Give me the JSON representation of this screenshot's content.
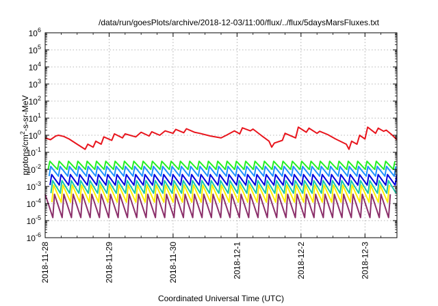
{
  "chart_data": {
    "type": "line",
    "title": "/data/run/goesPlots/archive/2018-12-03/11:00/flux/../flux/5daysMarsFluxes.txt",
    "xlabel": "Coordinated Universal Time (UTC)",
    "ylabel": {
      "prefix": "protons/cm",
      "superscript": "2",
      "suffix": "-s-sr-MeV"
    },
    "x_axis": {
      "type": "date",
      "range": [
        "2018-11-28",
        "2018-12-03 12:00"
      ],
      "tick_labels": [
        "2018-11-28",
        "2018-11-29",
        "2018-11-30",
        "2018-12-1",
        "2018-12-2",
        "2018-12-3"
      ],
      "grid": true
    },
    "y_axis": {
      "scale": "log",
      "range": [
        1e-06,
        1000000
      ],
      "tick_labels": [
        {
          "base": "10",
          "exp": "-6"
        },
        {
          "base": "10",
          "exp": "-5"
        },
        {
          "base": "10",
          "exp": "-4"
        },
        {
          "base": "10",
          "exp": "-3"
        },
        {
          "base": "10",
          "exp": "-2"
        },
        {
          "base": "10",
          "exp": "-1"
        },
        {
          "base": "10",
          "exp": "0"
        },
        {
          "base": "10",
          "exp": "1"
        },
        {
          "base": "10",
          "exp": "2"
        },
        {
          "base": "10",
          "exp": "3"
        },
        {
          "base": "10",
          "exp": "4"
        },
        {
          "base": "10",
          "exp": "5"
        },
        {
          "base": "10",
          "exp": "6"
        }
      ],
      "grid": true
    },
    "legend": "none",
    "series": [
      {
        "color": "#e8141c",
        "points": [
          [
            "2018-11-28 00:00",
            0.7
          ],
          [
            "2018-11-28 02:00",
            0.55
          ],
          [
            "2018-11-28 04:00",
            0.9
          ],
          [
            "2018-11-28 05:00",
            1.0
          ],
          [
            "2018-11-28 07:00",
            0.85
          ],
          [
            "2018-11-28 09:00",
            0.6
          ],
          [
            "2018-11-28 12:00",
            0.3
          ],
          [
            "2018-11-28 15:00",
            0.15
          ],
          [
            "2018-11-28 16:00",
            0.3
          ],
          [
            "2018-11-28 18:00",
            0.2
          ],
          [
            "2018-11-28 19:00",
            0.45
          ],
          [
            "2018-11-28 21:00",
            0.3
          ],
          [
            "2018-11-28 22:00",
            0.8
          ],
          [
            "2018-11-29 01:00",
            0.5
          ],
          [
            "2018-11-29 02:00",
            1.2
          ],
          [
            "2018-11-29 05:00",
            0.7
          ],
          [
            "2018-11-29 06:00",
            1.2
          ],
          [
            "2018-11-29 10:00",
            0.8
          ],
          [
            "2018-11-29 12:00",
            1.5
          ],
          [
            "2018-11-29 15:00",
            0.9
          ],
          [
            "2018-11-29 16:00",
            1.6
          ],
          [
            "2018-11-29 19:00",
            1.0
          ],
          [
            "2018-11-29 21:00",
            1.8
          ],
          [
            "2018-11-30 00:00",
            1.3
          ],
          [
            "2018-11-30 01:00",
            2.2
          ],
          [
            "2018-11-30 04:00",
            1.4
          ],
          [
            "2018-11-30 05:00",
            2.4
          ],
          [
            "2018-11-30 08:00",
            1.5
          ],
          [
            "2018-11-30 10:00",
            1.3
          ],
          [
            "2018-11-30 14:00",
            0.9
          ],
          [
            "2018-11-30 18:00",
            0.7
          ],
          [
            "2018-11-30 20:00",
            1.0
          ],
          [
            "2018-11-30 23:00",
            1.8
          ],
          [
            "2018-12-01 01:00",
            1.2
          ],
          [
            "2018-12-01 02:00",
            2.7
          ],
          [
            "2018-12-01 05:00",
            1.8
          ],
          [
            "2018-12-01 06:00",
            2.3
          ],
          [
            "2018-12-01 09:00",
            1.0
          ],
          [
            "2018-12-01 12:00",
            0.45
          ],
          [
            "2018-12-01 13:00",
            0.2
          ],
          [
            "2018-12-01 14:00",
            0.35
          ],
          [
            "2018-12-01 17:00",
            0.5
          ],
          [
            "2018-12-01 18:00",
            1.3
          ],
          [
            "2018-12-01 22:00",
            0.7
          ],
          [
            "2018-12-01 23:00",
            3.0
          ],
          [
            "2018-12-02 02:00",
            1.5
          ],
          [
            "2018-12-02 03:00",
            2.6
          ],
          [
            "2018-12-02 06:00",
            1.3
          ],
          [
            "2018-12-02 07:00",
            1.7
          ],
          [
            "2018-12-02 10:00",
            1.1
          ],
          [
            "2018-12-02 13:00",
            0.6
          ],
          [
            "2018-12-02 17:00",
            0.3
          ],
          [
            "2018-12-02 18:00",
            0.15
          ],
          [
            "2018-12-02 19:00",
            0.45
          ],
          [
            "2018-12-02 21:00",
            0.3
          ],
          [
            "2018-12-02 22:00",
            1.0
          ],
          [
            "2018-12-03 00:00",
            0.6
          ],
          [
            "2018-12-03 01:00",
            3.0
          ],
          [
            "2018-12-03 04:00",
            1.3
          ],
          [
            "2018-12-03 05:00",
            2.6
          ],
          [
            "2018-12-03 07:00",
            1.7
          ],
          [
            "2018-12-03 08:00",
            2.0
          ],
          [
            "2018-12-03 10:00",
            1.1
          ],
          [
            "2018-12-03 12:00",
            0.55
          ]
        ]
      },
      {
        "color": "#22ee22",
        "sawtooth": {
          "period_hours": 3.5,
          "high": 0.03,
          "low": 0.01
        }
      },
      {
        "color": "#1e90ff",
        "sawtooth": {
          "period_hours": 3.5,
          "high": 0.015,
          "low": 0.004
        }
      },
      {
        "color": "#0000dd",
        "sawtooth": {
          "period_hours": 3.5,
          "high": 0.005,
          "low": 0.0012
        }
      },
      {
        "color": "#16c8a8",
        "sawtooth": {
          "period_hours": 3.5,
          "high": 0.0022,
          "low": 0.0004
        }
      },
      {
        "color": "#ffee00",
        "sawtooth": {
          "period_hours": 3.5,
          "high": 0.0012,
          "low": 0.00012
        }
      },
      {
        "color": "#8b2f6a",
        "sawtooth": {
          "period_hours": 3.5,
          "high": 0.00035,
          "low": 1.5e-05
        }
      }
    ]
  }
}
